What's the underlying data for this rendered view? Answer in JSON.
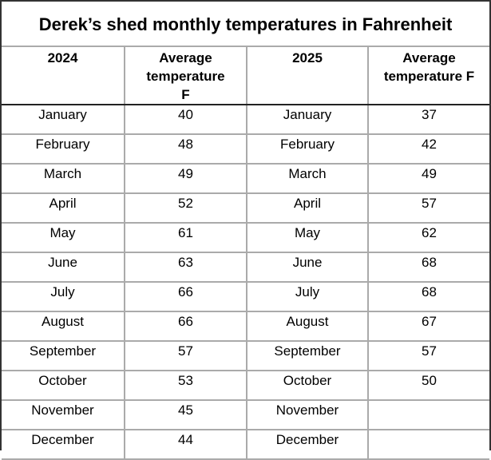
{
  "title": "Derek’s shed monthly temperatures in Fahrenheit",
  "headers": [
    "2024",
    "Average temperature F",
    "2025",
    "Average temperature F"
  ],
  "rows": [
    [
      "January",
      "40",
      "January",
      "37"
    ],
    [
      "February",
      "48",
      "February",
      "42"
    ],
    [
      "March",
      "49",
      "March",
      "49"
    ],
    [
      "April",
      "52",
      "April",
      "57"
    ],
    [
      "May",
      "61",
      "May",
      "62"
    ],
    [
      "June",
      "63",
      "June",
      "68"
    ],
    [
      "July",
      "66",
      "July",
      "68"
    ],
    [
      "August",
      "66",
      "August",
      "67"
    ],
    [
      "September",
      "57",
      "September",
      "57"
    ],
    [
      "October",
      "53",
      "October",
      "50"
    ],
    [
      "November",
      "45",
      "November",
      ""
    ],
    [
      "December",
      "44",
      "December",
      ""
    ]
  ]
}
